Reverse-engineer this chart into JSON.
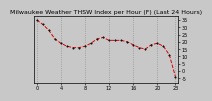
{
  "title": "Milwaukee Weather THSW Index per Hour (F) (Last 24 Hours)",
  "x": [
    0,
    1,
    2,
    3,
    4,
    5,
    6,
    7,
    8,
    9,
    10,
    11,
    12,
    13,
    14,
    15,
    16,
    17,
    18,
    19,
    20,
    21,
    22,
    23
  ],
  "y": [
    35,
    32,
    28,
    22,
    19,
    17,
    16,
    16,
    17,
    19,
    22,
    23,
    21,
    21,
    21,
    20,
    18,
    16,
    15,
    18,
    19,
    17,
    11,
    -4
  ],
  "line_color": "#dd0000",
  "marker_color": "#111111",
  "bg_color": "#c8c8c8",
  "plot_bg": "#c8c8c8",
  "ylim": [
    -8,
    38
  ],
  "yticks": [
    35,
    30,
    25,
    20,
    15,
    10,
    5,
    0,
    -5
  ],
  "ytick_labels": [
    "35",
    "30",
    "25",
    "20",
    "15",
    "10",
    "5",
    "0",
    "-5"
  ],
  "xticks": [
    0,
    4,
    8,
    12,
    16,
    20,
    23
  ],
  "xtick_labels": [
    "0",
    "4",
    "8",
    "12",
    "16",
    "20",
    "23"
  ],
  "title_fontsize": 4.5,
  "tick_fontsize": 3.5,
  "grid_color": "#888888",
  "vgrid_positions": [
    0,
    4,
    8,
    12,
    16,
    20,
    23
  ]
}
